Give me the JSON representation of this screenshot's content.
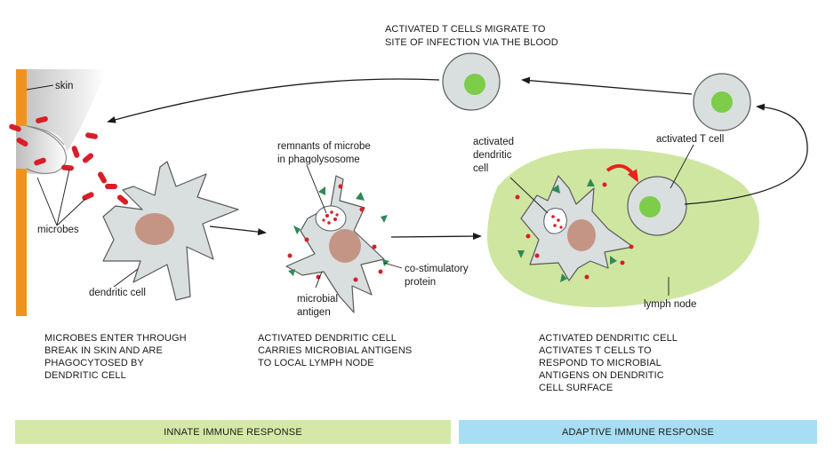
{
  "labels": {
    "skin": "skin",
    "microbes": "microbes",
    "dendritic_cell": "dendritic cell",
    "remnants": [
      "remnants of microbe",
      "in phagolysosome"
    ],
    "co_stimulatory": [
      "co-stimulatory",
      "protein"
    ],
    "microbial_antigen": [
      "microbial",
      "antigen"
    ],
    "activated_dendritic_cell": [
      "activated",
      "dendritic",
      "cell"
    ],
    "activated_t_cell": "activated T cell",
    "lymph_node": "lymph node"
  },
  "captions": {
    "top": [
      "ACTIVATED T CELLS MIGRATE TO",
      "SITE OF INFECTION VIA THE BLOOD"
    ],
    "step1": [
      "MICROBES ENTER THROUGH",
      "BREAK IN SKIN AND ARE",
      "PHAGOCYTOSED BY",
      "DENDRITIC CELL"
    ],
    "step2": [
      "ACTIVATED DENDRITIC CELL",
      "CARRIES MICROBIAL ANTIGENS",
      "TO LOCAL LYMPH NODE"
    ],
    "step3": [
      "ACTIVATED DENDRITIC CELL",
      "ACTIVATES T CELLS TO",
      "RESPOND TO MICROBIAL",
      "ANTIGENS ON DENDRITIC",
      "CELL SURFACE"
    ]
  },
  "bands": {
    "innate": "INNATE IMMUNE RESPONSE",
    "adaptive": "ADAPTIVE IMMUNE RESPONSE"
  },
  "colors": {
    "skin_edge": "#f0931e",
    "cell_fill": "#d9dedf",
    "nucleus": "#c49585",
    "microbe": "#d81e27",
    "t_nucleus": "#7dcc4a",
    "lymph_node": "#cfe6a1",
    "co_stim": "#2f8a55",
    "innate_band": "#d6e8a7",
    "adaptive_band": "#a8def3",
    "arrow": "#1a1a1a",
    "red_arrow": "#e8231e"
  }
}
